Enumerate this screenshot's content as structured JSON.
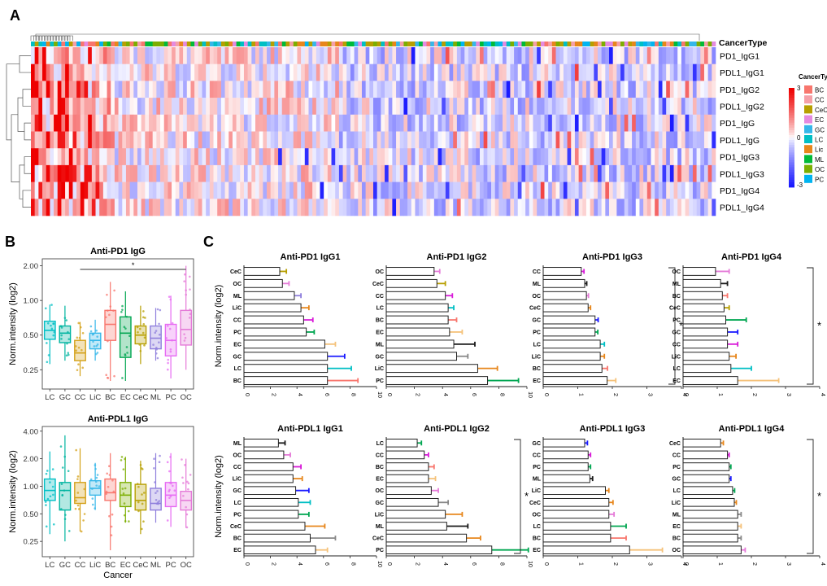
{
  "panel_labels": {
    "a": "A",
    "b": "B",
    "c": "C"
  },
  "chart_data": [
    {
      "id": "heatmap",
      "type": "heatmap",
      "rows": [
        "PD1_IgG1",
        "PDL1_IgG1",
        "PD1_IgG2",
        "PDL1_IgG2",
        "PD1_IgG",
        "PDL1_IgG",
        "PD1_IgG3",
        "PDL1_IgG3",
        "PD1_IgG4",
        "PDL1_IgG4"
      ],
      "column_annotation_title": "CancerType",
      "legend_title": "CancerType",
      "legend_categories": [
        "BC",
        "CC",
        "CeC",
        "EC",
        "GC",
        "LC",
        "Lic",
        "ML",
        "OC",
        "PC"
      ],
      "legend_colors": [
        "#f8766d",
        "#f5a0a8",
        "#b79f00",
        "#e58ae0",
        "#35b7e9",
        "#00bfc4",
        "#e7861b",
        "#00ba38",
        "#7cae00",
        "#00b4f0"
      ],
      "color_scale": {
        "min": -3,
        "mid": 0,
        "max": 3,
        "low_color": "#1a1aff",
        "mid_color": "#ffffff",
        "high_color": "#ee0000"
      },
      "colorbar_ticks": [
        "3",
        "0",
        "-3"
      ],
      "n_columns": 180
    },
    {
      "id": "box_pd1",
      "type": "box",
      "title": "Anti-PD1  IgG",
      "ylabel": "Norm.intensity (log2)",
      "yticks": [
        "2.00",
        "1.00",
        "0.50",
        "0.25"
      ],
      "yscale": "log2",
      "ylim": [
        0.17,
        2.3
      ],
      "categories": [
        "LC",
        "GC",
        "CC",
        "LiC",
        "BC",
        "EC",
        "CeC",
        "ML",
        "PC",
        "OC"
      ],
      "colors": [
        "#00bfc4",
        "#00b4a0",
        "#d4a017",
        "#35b7e9",
        "#f8766d",
        "#00a651",
        "#b79f00",
        "#8f7fdc",
        "#e76bf3",
        "#e57bd8"
      ],
      "q1": [
        0.46,
        0.43,
        0.3,
        0.38,
        0.45,
        0.32,
        0.42,
        0.38,
        0.33,
        0.41
      ],
      "median": [
        0.55,
        0.52,
        0.35,
        0.45,
        0.62,
        0.52,
        0.5,
        0.47,
        0.45,
        0.56
      ],
      "q3": [
        0.66,
        0.6,
        0.45,
        0.52,
        0.82,
        0.72,
        0.6,
        0.6,
        0.62,
        0.82
      ],
      "lower": [
        0.28,
        0.3,
        0.22,
        0.3,
        0.2,
        0.2,
        0.28,
        0.3,
        0.21,
        0.25
      ],
      "upper": [
        0.92,
        0.9,
        0.65,
        0.68,
        1.45,
        1.2,
        0.9,
        0.86,
        1.1,
        2.0
      ],
      "significance": "*",
      "sig_bracket_categories": [
        "CC",
        "OC"
      ]
    },
    {
      "id": "box_pdl1",
      "type": "box",
      "title": "Anti-PDL1  IgG",
      "ylabel": "Norm.intensity (log2)",
      "xlabel": "Cancer",
      "yticks": [
        "4.00",
        "2.00",
        "1.00",
        "0.50",
        "0.25"
      ],
      "yscale": "log2",
      "ylim": [
        0.17,
        4.5
      ],
      "categories": [
        "LC",
        "GC",
        "CC",
        "LiC",
        "BC",
        "EC",
        "CeC",
        "ML",
        "PC",
        "OC"
      ],
      "colors": [
        "#00bfc4",
        "#00b4a0",
        "#d4a017",
        "#35b7e9",
        "#f8766d",
        "#7cae00",
        "#b79f00",
        "#8f7fdc",
        "#e76bf3",
        "#e57bd8"
      ],
      "q1": [
        0.7,
        0.55,
        0.65,
        0.8,
        0.7,
        0.6,
        0.55,
        0.55,
        0.6,
        0.55
      ],
      "median": [
        0.9,
        0.9,
        0.75,
        0.95,
        0.85,
        0.8,
        0.7,
        0.65,
        0.8,
        0.7
      ],
      "q3": [
        1.2,
        1.1,
        1.1,
        1.15,
        1.2,
        1.1,
        1.05,
        0.95,
        1.1,
        0.88
      ],
      "lower": [
        0.3,
        0.25,
        0.32,
        0.55,
        0.2,
        0.4,
        0.3,
        0.4,
        0.36,
        0.35
      ],
      "upper": [
        2.4,
        3.6,
        2.6,
        1.8,
        2.3,
        2.1,
        1.9,
        2.3,
        2.3,
        2.0
      ]
    },
    {
      "id": "bar_pd1_igg1",
      "type": "bar",
      "orientation": "horizontal",
      "title": "Anti-PD1  IgG1",
      "ylabel": "Norm.intensity (log2)",
      "categories": [
        "CeC",
        "OC",
        "ML",
        "LiC",
        "CC",
        "PC",
        "EC",
        "GC",
        "LC",
        "BC"
      ],
      "values": [
        2.7,
        2.9,
        3.8,
        4.3,
        4.5,
        4.7,
        6.1,
        6.3,
        6.3,
        6.3
      ],
      "errors": [
        0.5,
        0.5,
        0.5,
        0.6,
        0.7,
        0.6,
        0.8,
        1.3,
        1.8,
        2.3
      ],
      "error_colors": [
        "#b79f00",
        "#e57bd8",
        "#8f7fdc",
        "#e7861b",
        "#d81bd8",
        "#00a651",
        "#f5c27a",
        "#1a1aff",
        "#00bfc4",
        "#f8766d"
      ],
      "xticks": [
        "0",
        "2",
        "4",
        "6",
        "8",
        "10"
      ],
      "xlim": [
        0,
        10
      ]
    },
    {
      "id": "bar_pd1_igg2",
      "type": "bar",
      "orientation": "horizontal",
      "title": "Anti-PD1  IgG2",
      "categories": [
        "OC",
        "CeC",
        "CC",
        "LC",
        "BC",
        "EC",
        "ML",
        "GC",
        "LiC",
        "PC"
      ],
      "values": [
        3.4,
        3.6,
        4.2,
        4.4,
        4.4,
        4.5,
        4.8,
        5.0,
        6.5,
        7.2
      ],
      "errors": [
        0.4,
        0.6,
        0.5,
        0.4,
        0.6,
        0.9,
        1.5,
        0.8,
        1.4,
        2.2
      ],
      "error_colors": [
        "#e57bd8",
        "#b79f00",
        "#d81bd8",
        "#00bfc4",
        "#f8766d",
        "#f5c27a",
        "#1a1a1a",
        "#888888",
        "#e7861b",
        "#00a651"
      ],
      "xticks": [
        "0",
        "2",
        "4",
        "6",
        "8",
        "10"
      ],
      "xlim": [
        0,
        10
      ]
    },
    {
      "id": "bar_pd1_igg3",
      "type": "bar",
      "orientation": "horizontal",
      "title": "Anti-PD1  IgG3",
      "categories": [
        "CC",
        "ML",
        "OC",
        "CeC",
        "GC",
        "PC",
        "LC",
        "LiC",
        "BC",
        "EC"
      ],
      "values": [
        1.1,
        1.2,
        1.25,
        1.3,
        1.5,
        1.5,
        1.65,
        1.65,
        1.7,
        1.85
      ],
      "errors": [
        0.08,
        0.06,
        0.06,
        0.07,
        0.09,
        0.08,
        0.12,
        0.12,
        0.16,
        0.25
      ],
      "error_colors": [
        "#d81bd8",
        "#1a1a1a",
        "#e57bd8",
        "#e7861b",
        "#1a1aff",
        "#00a651",
        "#00bfc4",
        "#e7861b",
        "#f8766d",
        "#f5c27a"
      ],
      "xticks": [
        "0",
        "1",
        "2",
        "3",
        "4"
      ],
      "xlim": [
        0,
        4
      ],
      "significance": "*"
    },
    {
      "id": "bar_pd1_igg4",
      "type": "bar",
      "orientation": "horizontal",
      "title": "Anti-PD1  IgG4",
      "categories": [
        "OC",
        "ML",
        "BC",
        "CeC",
        "PC",
        "GC",
        "CC",
        "LiC",
        "LC",
        "EC"
      ],
      "values": [
        0.95,
        1.1,
        1.15,
        1.2,
        1.25,
        1.3,
        1.3,
        1.35,
        1.4,
        1.6
      ],
      "errors": [
        0.4,
        0.2,
        0.15,
        0.15,
        0.6,
        0.3,
        0.3,
        0.2,
        0.6,
        1.2
      ],
      "error_colors": [
        "#e57bd8",
        "#1a1a1a",
        "#f8766d",
        "#b79f00",
        "#00a651",
        "#1a1aff",
        "#d81bd8",
        "#e7861b",
        "#00bfc4",
        "#f5c27a"
      ],
      "xticks": [
        "0",
        "1",
        "2",
        "3",
        "4"
      ],
      "xlim": [
        0,
        4
      ],
      "significance": "*"
    },
    {
      "id": "bar_pdl1_igg1",
      "type": "bar",
      "orientation": "horizontal",
      "title": "Anti-PDL1  IgG1",
      "ylabel": "Norm.intensity (log2)",
      "categories": [
        "ML",
        "OC",
        "CC",
        "LiC",
        "GC",
        "LC",
        "PC",
        "CeC",
        "BC",
        "EC"
      ],
      "values": [
        2.6,
        3.0,
        3.7,
        3.7,
        3.9,
        4.1,
        4.1,
        4.6,
        5.0,
        5.4
      ],
      "errors": [
        0.5,
        0.5,
        0.6,
        0.7,
        1.0,
        0.9,
        0.8,
        1.5,
        1.9,
        0.9
      ],
      "error_colors": [
        "#1a1a1a",
        "#e57bd8",
        "#d81bd8",
        "#e7861b",
        "#1a1aff",
        "#00bfc4",
        "#00a651",
        "#e7861b",
        "#888888",
        "#f5c27a"
      ],
      "xticks": [
        "0",
        "2",
        "4",
        "6",
        "8",
        "10"
      ],
      "xlim": [
        0,
        10
      ]
    },
    {
      "id": "bar_pdl1_igg2",
      "type": "bar",
      "orientation": "horizontal",
      "title": "Anti-PDL1  IgG2",
      "categories": [
        "LC",
        "CC",
        "BC",
        "EC",
        "OC",
        "GC",
        "LiC",
        "ML",
        "CeC",
        "PC"
      ],
      "values": [
        2.2,
        2.7,
        3.0,
        3.0,
        3.2,
        3.7,
        4.2,
        4.3,
        5.7,
        7.5
      ],
      "errors": [
        0.3,
        0.3,
        0.4,
        0.5,
        0.5,
        0.7,
        1.2,
        1.5,
        1.0,
        2.6
      ],
      "error_colors": [
        "#00a651",
        "#d81bd8",
        "#f8766d",
        "#f5c27a",
        "#e57bd8",
        "#888888",
        "#e7861b",
        "#1a1a1a",
        "#e7861b",
        "#00a651"
      ],
      "xticks": [
        "0",
        "2",
        "4",
        "6",
        "8",
        "10"
      ],
      "xlim": [
        0,
        10
      ],
      "significance": "*"
    },
    {
      "id": "bar_pdl1_igg3",
      "type": "bar",
      "orientation": "horizontal",
      "title": "Anti-PDL1  IgG3",
      "categories": [
        "GC",
        "CC",
        "PC",
        "ML",
        "LiC",
        "CeC",
        "OC",
        "LC",
        "BC",
        "EC"
      ],
      "values": [
        1.2,
        1.3,
        1.3,
        1.35,
        1.8,
        1.9,
        1.9,
        1.95,
        1.95,
        2.5
      ],
      "errors": [
        0.08,
        0.07,
        0.07,
        0.08,
        0.1,
        0.12,
        0.15,
        0.45,
        0.45,
        0.95
      ],
      "error_colors": [
        "#1a1aff",
        "#d81bd8",
        "#00a651",
        "#1a1a1a",
        "#e7861b",
        "#e7861b",
        "#e57bd8",
        "#00a651",
        "#f8766d",
        "#f5c27a"
      ],
      "xticks": [
        "0",
        "1",
        "2",
        "3",
        "4"
      ],
      "xlim": [
        0,
        4
      ]
    },
    {
      "id": "bar_pdl1_igg4",
      "type": "bar",
      "orientation": "horizontal",
      "title": "Anti-PDL1  IgG4",
      "categories": [
        "CeC",
        "CC",
        "PC",
        "GC",
        "LC",
        "LiC",
        "ML",
        "EC",
        "BC",
        "OC"
      ],
      "values": [
        1.1,
        1.3,
        1.35,
        1.35,
        1.45,
        1.5,
        1.6,
        1.6,
        1.6,
        1.7
      ],
      "errors": [
        0.08,
        0.05,
        0.05,
        0.05,
        0.06,
        0.06,
        0.1,
        0.1,
        0.1,
        0.12
      ],
      "error_colors": [
        "#e7861b",
        "#d81bd8",
        "#00a651",
        "#1a1aff",
        "#00a651",
        "#e7861b",
        "#888888",
        "#f5c27a",
        "#888888",
        "#e57bd8"
      ],
      "xticks": [
        "0",
        "1",
        "2",
        "3",
        "4"
      ],
      "xlim": [
        0,
        4
      ],
      "significance": "*"
    }
  ]
}
